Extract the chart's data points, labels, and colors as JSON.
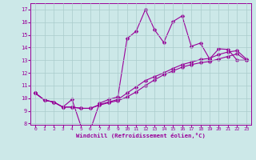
{
  "xlabel": "Windchill (Refroidissement éolien,°C)",
  "bg_color": "#cce8e8",
  "line_color": "#990099",
  "grid_color": "#aacccc",
  "xlim": [
    -0.5,
    23.5
  ],
  "ylim": [
    7.9,
    17.5
  ],
  "xticks": [
    0,
    1,
    2,
    3,
    4,
    5,
    6,
    7,
    8,
    9,
    10,
    11,
    12,
    13,
    14,
    15,
    16,
    17,
    18,
    19,
    20,
    21,
    22,
    23
  ],
  "yticks": [
    8,
    9,
    10,
    11,
    12,
    13,
    14,
    15,
    16,
    17
  ],
  "line1_x": [
    0,
    1,
    2,
    3,
    4,
    5,
    6,
    7,
    8,
    9,
    10,
    11,
    12,
    13,
    14,
    15,
    16,
    17,
    18,
    19,
    20,
    21,
    22,
    23
  ],
  "line1_y": [
    10.4,
    9.85,
    9.7,
    9.3,
    9.9,
    7.75,
    7.5,
    9.6,
    9.9,
    10.1,
    14.7,
    15.3,
    17.0,
    15.4,
    14.4,
    16.05,
    16.5,
    14.1,
    14.35,
    13.1,
    13.9,
    13.85,
    13.0,
    13.0
  ],
  "line2_x": [
    0,
    1,
    2,
    3,
    4,
    5,
    6,
    7,
    8,
    9,
    10,
    11,
    12,
    13,
    14,
    15,
    16,
    17,
    18,
    19,
    20,
    21,
    22,
    23
  ],
  "line2_y": [
    10.4,
    9.85,
    9.7,
    9.3,
    9.3,
    9.2,
    9.2,
    9.5,
    9.7,
    9.9,
    10.4,
    10.9,
    11.4,
    11.7,
    12.0,
    12.35,
    12.65,
    12.85,
    13.05,
    13.15,
    13.45,
    13.65,
    13.75,
    13.1
  ],
  "line3_x": [
    0,
    1,
    2,
    3,
    4,
    5,
    6,
    7,
    8,
    9,
    10,
    11,
    12,
    13,
    14,
    15,
    16,
    17,
    18,
    19,
    20,
    21,
    22,
    23
  ],
  "line3_y": [
    10.4,
    9.85,
    9.7,
    9.3,
    9.3,
    9.2,
    9.2,
    9.45,
    9.65,
    9.8,
    10.1,
    10.5,
    11.0,
    11.45,
    11.85,
    12.15,
    12.45,
    12.65,
    12.8,
    12.9,
    13.1,
    13.3,
    13.5,
    13.0
  ]
}
